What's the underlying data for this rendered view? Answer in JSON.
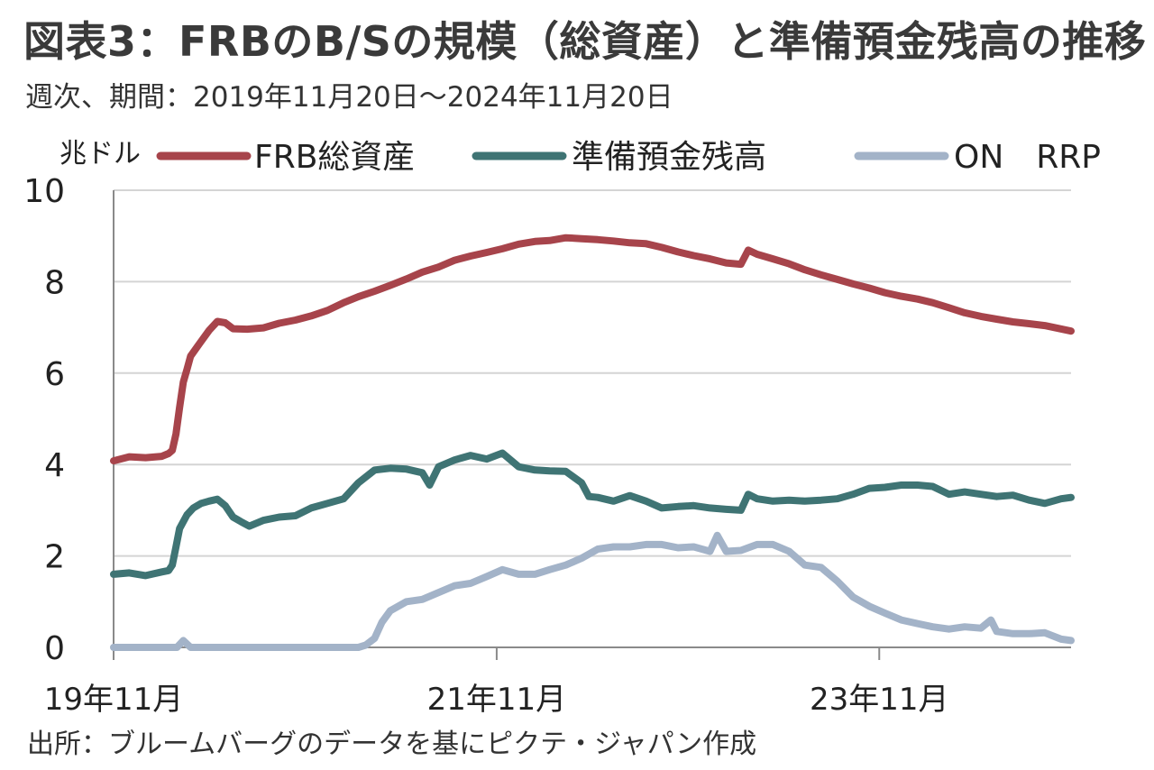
{
  "title": "図表3：FRBのB/Sの規模（総資産）と準備預金残高の推移",
  "subtitle": "週次、期間：2019年11月20日～2024年11月20日",
  "source": "出所：ブルームバーグのデータを基にピクテ・ジャパン作成",
  "chart_data": {
    "type": "line",
    "ylabel": "兆ドル",
    "ylim": [
      0,
      10
    ],
    "yticks": [
      "0",
      "2",
      "4",
      "6",
      "8",
      "10"
    ],
    "xlim": [
      "2019-11-20",
      "2024-11-20"
    ],
    "xticks": [
      {
        "label": "19年11月",
        "date": "2019-11-20"
      },
      {
        "label": "21年11月",
        "date": "2021-11-20"
      },
      {
        "label": "23年11月",
        "date": "2023-11-20"
      }
    ],
    "grid": true,
    "legend_position": "top",
    "series": [
      {
        "name": "FRB総資産",
        "color": "#a7444b",
        "points": [
          [
            "2019-11-20",
            4.08
          ],
          [
            "2019-12-20",
            4.17
          ],
          [
            "2020-01-20",
            4.15
          ],
          [
            "2020-02-20",
            4.18
          ],
          [
            "2020-03-04",
            4.24
          ],
          [
            "2020-03-11",
            4.31
          ],
          [
            "2020-03-18",
            4.67
          ],
          [
            "2020-03-25",
            5.25
          ],
          [
            "2020-04-01",
            5.8
          ],
          [
            "2020-04-08",
            6.08
          ],
          [
            "2020-04-15",
            6.37
          ],
          [
            "2020-05-01",
            6.63
          ],
          [
            "2020-05-20",
            6.93
          ],
          [
            "2020-06-05",
            7.13
          ],
          [
            "2020-06-20",
            7.1
          ],
          [
            "2020-07-05",
            6.97
          ],
          [
            "2020-08-01",
            6.96
          ],
          [
            "2020-09-01",
            6.99
          ],
          [
            "2020-10-01",
            7.09
          ],
          [
            "2020-11-01",
            7.16
          ],
          [
            "2020-12-01",
            7.25
          ],
          [
            "2021-01-01",
            7.37
          ],
          [
            "2021-02-01",
            7.54
          ],
          [
            "2021-03-01",
            7.67
          ],
          [
            "2021-04-01",
            7.79
          ],
          [
            "2021-05-01",
            7.92
          ],
          [
            "2021-06-01",
            8.06
          ],
          [
            "2021-07-01",
            8.21
          ],
          [
            "2021-08-01",
            8.32
          ],
          [
            "2021-09-01",
            8.47
          ],
          [
            "2021-10-01",
            8.56
          ],
          [
            "2021-11-01",
            8.64
          ],
          [
            "2021-12-01",
            8.72
          ],
          [
            "2022-01-01",
            8.82
          ],
          [
            "2022-02-01",
            8.88
          ],
          [
            "2022-03-01",
            8.9
          ],
          [
            "2022-04-01",
            8.96
          ],
          [
            "2022-05-01",
            8.94
          ],
          [
            "2022-06-01",
            8.92
          ],
          [
            "2022-07-01",
            8.89
          ],
          [
            "2022-08-01",
            8.85
          ],
          [
            "2022-09-01",
            8.83
          ],
          [
            "2022-10-01",
            8.75
          ],
          [
            "2022-11-01",
            8.65
          ],
          [
            "2022-12-01",
            8.57
          ],
          [
            "2023-01-01",
            8.5
          ],
          [
            "2023-02-01",
            8.41
          ],
          [
            "2023-03-01",
            8.38
          ],
          [
            "2023-03-15",
            8.69
          ],
          [
            "2023-04-01",
            8.6
          ],
          [
            "2023-05-01",
            8.5
          ],
          [
            "2023-06-01",
            8.39
          ],
          [
            "2023-07-01",
            8.26
          ],
          [
            "2023-08-01",
            8.15
          ],
          [
            "2023-09-01",
            8.05
          ],
          [
            "2023-10-01",
            7.95
          ],
          [
            "2023-11-01",
            7.86
          ],
          [
            "2023-12-01",
            7.76
          ],
          [
            "2024-01-01",
            7.68
          ],
          [
            "2024-02-01",
            7.62
          ],
          [
            "2024-03-01",
            7.54
          ],
          [
            "2024-04-01",
            7.43
          ],
          [
            "2024-05-01",
            7.32
          ],
          [
            "2024-06-01",
            7.24
          ],
          [
            "2024-07-01",
            7.18
          ],
          [
            "2024-08-01",
            7.12
          ],
          [
            "2024-09-01",
            7.08
          ],
          [
            "2024-10-01",
            7.04
          ],
          [
            "2024-11-20",
            6.92
          ]
        ]
      },
      {
        "name": "準備預金残高",
        "color": "#3f7474",
        "points": [
          [
            "2019-11-20",
            1.6
          ],
          [
            "2019-12-20",
            1.63
          ],
          [
            "2020-01-20",
            1.57
          ],
          [
            "2020-02-20",
            1.65
          ],
          [
            "2020-03-04",
            1.68
          ],
          [
            "2020-03-11",
            1.8
          ],
          [
            "2020-03-18",
            2.2
          ],
          [
            "2020-03-25",
            2.6
          ],
          [
            "2020-04-08",
            2.9
          ],
          [
            "2020-04-20",
            3.05
          ],
          [
            "2020-05-05",
            3.15
          ],
          [
            "2020-05-20",
            3.2
          ],
          [
            "2020-06-05",
            3.24
          ],
          [
            "2020-06-20",
            3.1
          ],
          [
            "2020-07-05",
            2.85
          ],
          [
            "2020-07-20",
            2.75
          ],
          [
            "2020-08-05",
            2.65
          ],
          [
            "2020-09-01",
            2.78
          ],
          [
            "2020-10-01",
            2.85
          ],
          [
            "2020-11-01",
            2.88
          ],
          [
            "2020-12-01",
            3.05
          ],
          [
            "2021-01-01",
            3.15
          ],
          [
            "2021-02-01",
            3.25
          ],
          [
            "2021-03-01",
            3.6
          ],
          [
            "2021-04-01",
            3.88
          ],
          [
            "2021-05-01",
            3.92
          ],
          [
            "2021-06-01",
            3.9
          ],
          [
            "2021-07-01",
            3.82
          ],
          [
            "2021-07-15",
            3.55
          ],
          [
            "2021-08-01",
            3.95
          ],
          [
            "2021-09-01",
            4.1
          ],
          [
            "2021-10-01",
            4.2
          ],
          [
            "2021-11-01",
            4.12
          ],
          [
            "2021-12-01",
            4.25
          ],
          [
            "2022-01-01",
            3.95
          ],
          [
            "2022-02-01",
            3.88
          ],
          [
            "2022-03-01",
            3.86
          ],
          [
            "2022-04-01",
            3.85
          ],
          [
            "2022-05-01",
            3.6
          ],
          [
            "2022-05-15",
            3.3
          ],
          [
            "2022-06-01",
            3.28
          ],
          [
            "2022-07-01",
            3.2
          ],
          [
            "2022-08-01",
            3.32
          ],
          [
            "2022-09-01",
            3.2
          ],
          [
            "2022-10-01",
            3.05
          ],
          [
            "2022-11-01",
            3.08
          ],
          [
            "2022-12-01",
            3.1
          ],
          [
            "2023-01-01",
            3.05
          ],
          [
            "2023-02-01",
            3.02
          ],
          [
            "2023-03-01",
            3.0
          ],
          [
            "2023-03-15",
            3.35
          ],
          [
            "2023-04-01",
            3.25
          ],
          [
            "2023-05-01",
            3.2
          ],
          [
            "2023-06-01",
            3.22
          ],
          [
            "2023-07-01",
            3.2
          ],
          [
            "2023-08-01",
            3.22
          ],
          [
            "2023-09-01",
            3.25
          ],
          [
            "2023-10-01",
            3.35
          ],
          [
            "2023-11-01",
            3.48
          ],
          [
            "2023-12-01",
            3.5
          ],
          [
            "2024-01-01",
            3.55
          ],
          [
            "2024-02-01",
            3.55
          ],
          [
            "2024-03-01",
            3.52
          ],
          [
            "2024-04-01",
            3.35
          ],
          [
            "2024-05-01",
            3.4
          ],
          [
            "2024-06-01",
            3.35
          ],
          [
            "2024-07-01",
            3.3
          ],
          [
            "2024-08-01",
            3.33
          ],
          [
            "2024-09-01",
            3.22
          ],
          [
            "2024-10-01",
            3.15
          ],
          [
            "2024-11-01",
            3.25
          ],
          [
            "2024-11-20",
            3.28
          ]
        ]
      },
      {
        "name": "ON　RRP",
        "color": "#a3b3c8",
        "points": [
          [
            "2019-11-20",
            0.0
          ],
          [
            "2020-03-20",
            0.0
          ],
          [
            "2020-04-01",
            0.15
          ],
          [
            "2020-04-15",
            0.0
          ],
          [
            "2021-03-01",
            0.0
          ],
          [
            "2021-03-15",
            0.05
          ],
          [
            "2021-04-01",
            0.2
          ],
          [
            "2021-04-15",
            0.55
          ],
          [
            "2021-05-01",
            0.8
          ],
          [
            "2021-06-01",
            1.0
          ],
          [
            "2021-07-01",
            1.05
          ],
          [
            "2021-08-01",
            1.2
          ],
          [
            "2021-09-01",
            1.35
          ],
          [
            "2021-10-01",
            1.4
          ],
          [
            "2021-11-01",
            1.55
          ],
          [
            "2021-12-01",
            1.7
          ],
          [
            "2022-01-01",
            1.6
          ],
          [
            "2022-02-01",
            1.6
          ],
          [
            "2022-03-01",
            1.7
          ],
          [
            "2022-04-01",
            1.8
          ],
          [
            "2022-05-01",
            1.95
          ],
          [
            "2022-06-01",
            2.15
          ],
          [
            "2022-07-01",
            2.2
          ],
          [
            "2022-08-01",
            2.2
          ],
          [
            "2022-09-01",
            2.25
          ],
          [
            "2022-10-01",
            2.25
          ],
          [
            "2022-11-01",
            2.18
          ],
          [
            "2022-12-01",
            2.2
          ],
          [
            "2023-01-01",
            2.1
          ],
          [
            "2023-01-15",
            2.45
          ],
          [
            "2023-02-01",
            2.1
          ],
          [
            "2023-03-01",
            2.12
          ],
          [
            "2023-04-01",
            2.25
          ],
          [
            "2023-05-01",
            2.25
          ],
          [
            "2023-06-01",
            2.1
          ],
          [
            "2023-07-01",
            1.8
          ],
          [
            "2023-08-01",
            1.75
          ],
          [
            "2023-09-01",
            1.45
          ],
          [
            "2023-10-01",
            1.1
          ],
          [
            "2023-11-01",
            0.9
          ],
          [
            "2023-12-01",
            0.75
          ],
          [
            "2024-01-01",
            0.6
          ],
          [
            "2024-02-01",
            0.52
          ],
          [
            "2024-03-01",
            0.45
          ],
          [
            "2024-04-01",
            0.4
          ],
          [
            "2024-05-01",
            0.45
          ],
          [
            "2024-06-01",
            0.42
          ],
          [
            "2024-06-20",
            0.6
          ],
          [
            "2024-07-01",
            0.35
          ],
          [
            "2024-08-01",
            0.3
          ],
          [
            "2024-09-01",
            0.3
          ],
          [
            "2024-10-01",
            0.32
          ],
          [
            "2024-11-01",
            0.18
          ],
          [
            "2024-11-20",
            0.15
          ]
        ]
      }
    ]
  }
}
